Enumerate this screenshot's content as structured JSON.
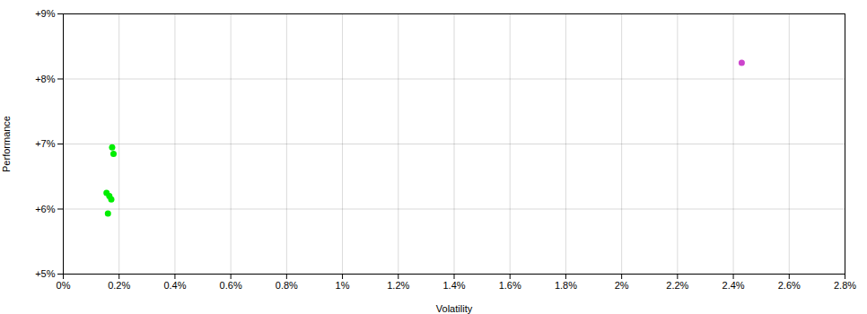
{
  "chart_data": {
    "type": "scatter",
    "xlabel": "Volatility",
    "ylabel": "Performance",
    "xlim": [
      0,
      0.028
    ],
    "ylim": [
      0.05,
      0.09
    ],
    "xticks": [
      {
        "value": 0,
        "label": "0%"
      },
      {
        "value": 0.002,
        "label": "0.2%"
      },
      {
        "value": 0.004,
        "label": "0.4%"
      },
      {
        "value": 0.006,
        "label": "0.6%"
      },
      {
        "value": 0.008,
        "label": "0.8%"
      },
      {
        "value": 0.01,
        "label": "1%"
      },
      {
        "value": 0.012,
        "label": "1.2%"
      },
      {
        "value": 0.014,
        "label": "1.4%"
      },
      {
        "value": 0.016,
        "label": "1.6%"
      },
      {
        "value": 0.018,
        "label": "1.8%"
      },
      {
        "value": 0.02,
        "label": "2%"
      },
      {
        "value": 0.022,
        "label": "2.2%"
      },
      {
        "value": 0.024,
        "label": "2.4%"
      },
      {
        "value": 0.026,
        "label": "2.6%"
      },
      {
        "value": 0.028,
        "label": "2.8%"
      }
    ],
    "yticks": [
      {
        "value": 0.05,
        "label": "+5%"
      },
      {
        "value": 0.06,
        "label": "+6%"
      },
      {
        "value": 0.07,
        "label": "+7%"
      },
      {
        "value": 0.08,
        "label": "+8%"
      },
      {
        "value": 0.09,
        "label": "+9%"
      }
    ],
    "grid": true,
    "series": [
      {
        "color": "#00ee00",
        "x": [
          0.00175,
          0.0018,
          0.00155,
          0.00165,
          0.00172,
          0.0016
        ],
        "values": [
          0.0695,
          0.0685,
          0.0625,
          0.062,
          0.0615,
          0.0593
        ]
      },
      {
        "color": "#cc44cc",
        "x": [
          0.0243
        ],
        "values": [
          0.0825
        ]
      }
    ]
  }
}
